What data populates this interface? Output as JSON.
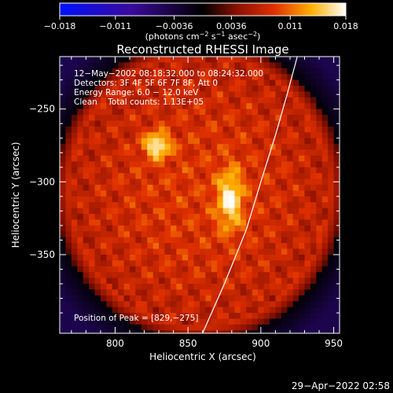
{
  "chart_data": {
    "type": "heatmap",
    "title": "Reconstructed RHESSI Image",
    "xlabel": "Heliocentric X (arcsec)",
    "ylabel": "Heliocentric Y (arcsec)",
    "xlim": [
      762,
      954
    ],
    "ylim": [
      -404,
      -214
    ],
    "x_ticks": [
      800,
      850,
      900,
      950
    ],
    "x_tick_labels": [
      "800",
      "850",
      "900",
      "950"
    ],
    "y_ticks": [
      -250,
      -300,
      -350
    ],
    "y_tick_labels": [
      "−250",
      "−300",
      "−350"
    ],
    "colorbar": {
      "range": [
        -0.018,
        0.018
      ],
      "ticks": [
        -0.018,
        -0.011,
        -0.0036,
        0.0036,
        0.011,
        0.018
      ],
      "tick_labels": [
        "−0.018",
        "−0.011",
        "−0.0036",
        "0.0036",
        "0.011",
        "0.018"
      ],
      "unit_label_parts": [
        "(photons cm",
        "−2",
        " s",
        "−1",
        " asec",
        "−2",
        ")"
      ]
    },
    "annotations": [
      "12−May−2002 08:18:32.000 to 08:24:32.000",
      "Detectors: 3F 4F 5F 6F 7F 8F, Att 0",
      "Energy Range: 6.0 − 12.0 keV",
      "Clean    Total counts: 1.13E+05"
    ],
    "peak_label": "Position of Peak = [829,−275]",
    "sources": [
      {
        "x": 829,
        "y": -275,
        "peak": 0.018,
        "sigma_x": 6,
        "sigma_y": 6
      },
      {
        "x": 879,
        "y": -312,
        "peak": 0.016,
        "sigma_x": 6,
        "sigma_y": 14
      }
    ],
    "background_level": 0.009,
    "limb_curve": [
      [
        860,
        -404
      ],
      [
        875,
        -370
      ],
      [
        890,
        -333
      ],
      [
        900,
        -300
      ],
      [
        910,
        -268
      ],
      [
        918,
        -240
      ],
      [
        925,
        -214
      ]
    ]
  },
  "footer": {
    "timestamp": "29−Apr−2022 02:58"
  }
}
